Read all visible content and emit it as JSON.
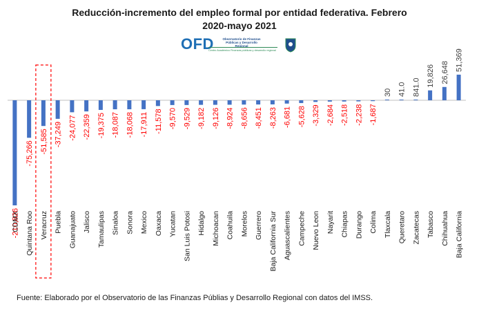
{
  "title_line1": "Reducción-incremento  del empleo formal por entidad federativa. Febrero",
  "title_line2": "2020-mayo 2021",
  "logo": {
    "name": "OFD",
    "subtitle": "Observatorio de Finanzas Públicas y Desarrollo Regional",
    "tagline": "Centro Académico Finanzas públicas y desarrollo regional"
  },
  "footer": "Fuente: Elaborado por el Observatorio de las Finanzas Públias y Desarrollo Regional con datos del IMSS.",
  "colors": {
    "bar": "#4472c4",
    "negative_label": "#ff0000",
    "positive_label": "#404040",
    "highlight": "#ff0000"
  },
  "chart_data": {
    "type": "bar",
    "categories": [
      "CDMX",
      "Quintana Roo",
      "Veracruz",
      "Puebla",
      "Guanajuato",
      "Jalisco",
      "Tamaulipas",
      "Sinaloa",
      "Sonora",
      "Mexico",
      "Oaxaca",
      "Yucatan",
      "San Luis Potosi",
      "Hidalgo",
      "Michoacan",
      "Coahuila",
      "Morelos",
      "Guerrero",
      "Baja California Sur",
      "Aguascalientes",
      "Campeche",
      "Nuevo Leon",
      "Nayarit",
      "Chiapas",
      "Durango",
      "Colima",
      "Tlaxcala",
      "Queretaro",
      "Zacatecas",
      "Tabasco",
      "Chihuahua",
      "Baja California"
    ],
    "values": [
      -210826,
      -75266,
      -51585,
      -37249,
      -24077,
      -22359,
      -19375,
      -18087,
      -18068,
      -17911,
      -11578,
      -9570,
      -9529,
      -9182,
      -9126,
      -8924,
      -8656,
      -8451,
      -8263,
      -6681,
      -5628,
      -3329,
      -2684,
      -2518,
      -2238,
      -1687,
      30,
      41,
      841,
      19826,
      26648,
      51369
    ],
    "labels": [
      "-210,826",
      "-75,266",
      "-51,585",
      "-37,249",
      "-24,077",
      "-22,359",
      "-19,375",
      "-18,087",
      "-18,068",
      "-17,911",
      "-11,578",
      "-9,570",
      "-9,529",
      "-9,182",
      "-9,126",
      "-8,924",
      "-8,656",
      "-8,451",
      "-8,263",
      "-6,681",
      "-5,628",
      "-3,329",
      "-2,684",
      "-2,518",
      "-2,238",
      "-1,687",
      "30",
      "41.0",
      "841.0",
      "19,826",
      "26,648",
      "51,369"
    ],
    "highlighted_category": "Veracruz"
  }
}
